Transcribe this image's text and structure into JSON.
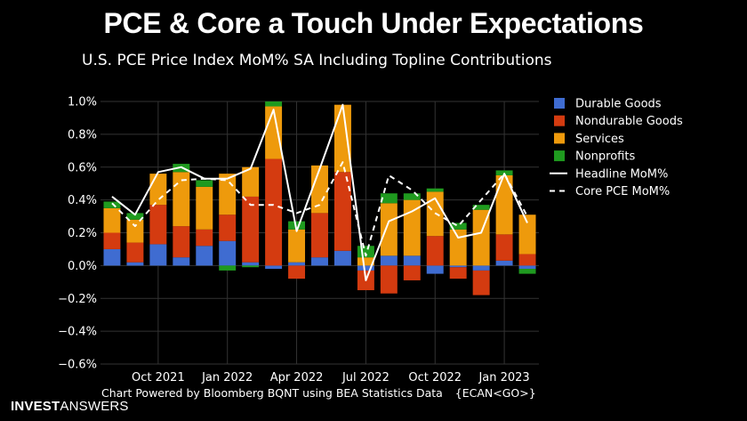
{
  "header": {
    "title": "PCE & Core a Touch Under Expectations",
    "subtitle": "U.S. PCE Price Index MoM% SA Including Topline Contributions"
  },
  "footer": {
    "credit": "Chart Powered by Bloomberg BQNT using BEA Statistics Data",
    "command": "{ECAN<GO>}",
    "brand_bold": "INVEST",
    "brand_light": "ANSWERS"
  },
  "colors": {
    "durable": "#3f6cd1",
    "nondurable": "#d43b10",
    "services": "#ee9a0c",
    "nonprofits": "#1f9a1f",
    "headline": "#ffffff",
    "core": "#ffffff",
    "grid": "#333333",
    "background": "#000000"
  },
  "chart_data": {
    "type": "bar",
    "stacked": true,
    "x": [
      "2021-08",
      "2021-09",
      "2021-10",
      "2021-11",
      "2021-12",
      "2022-01",
      "2022-02",
      "2022-03",
      "2022-04",
      "2022-05",
      "2022-06",
      "2022-07",
      "2022-08",
      "2022-09",
      "2022-10",
      "2022-11",
      "2022-12",
      "2023-01",
      "2023-02"
    ],
    "xtick_labels": [
      {
        "at": "2021-10",
        "label": "Oct 2021"
      },
      {
        "at": "2022-01",
        "label": "Jan 2022"
      },
      {
        "at": "2022-04",
        "label": "Apr 2022"
      },
      {
        "at": "2022-07",
        "label": "Jul 2022"
      },
      {
        "at": "2022-10",
        "label": "Oct 2022"
      },
      {
        "at": "2023-01",
        "label": "Jan 2023"
      }
    ],
    "ylim": [
      -0.6,
      1.0
    ],
    "yticks": [
      -0.6,
      -0.4,
      -0.2,
      0.0,
      0.2,
      0.4,
      0.6,
      0.8,
      1.0
    ],
    "ytick_labels": [
      "−0.6%",
      "−0.4%",
      "−0.2%",
      "0.0%",
      "0.2%",
      "0.4%",
      "0.6%",
      "0.8%",
      "1.0%"
    ],
    "series": [
      {
        "name": "Durable Goods",
        "kind": "bar",
        "color_key": "durable",
        "values": [
          0.1,
          0.02,
          0.13,
          0.05,
          0.12,
          0.15,
          0.02,
          -0.02,
          0.02,
          0.05,
          0.09,
          -0.03,
          0.06,
          0.06,
          -0.05,
          -0.01,
          -0.03,
          0.03,
          -0.02
        ]
      },
      {
        "name": "Nondurable Goods",
        "kind": "bar",
        "color_key": "nondurable",
        "values": [
          0.1,
          0.12,
          0.24,
          0.19,
          0.1,
          0.16,
          0.4,
          0.65,
          -0.08,
          0.27,
          0.48,
          -0.12,
          -0.17,
          -0.09,
          0.18,
          -0.07,
          -0.15,
          0.16,
          0.07
        ]
      },
      {
        "name": "Services",
        "kind": "bar",
        "color_key": "services",
        "values": [
          0.15,
          0.14,
          0.19,
          0.33,
          0.26,
          0.25,
          0.18,
          0.32,
          0.2,
          0.29,
          0.41,
          0.05,
          0.32,
          0.34,
          0.27,
          0.22,
          0.34,
          0.36,
          0.24
        ]
      },
      {
        "name": "Nonprofits",
        "kind": "bar",
        "color_key": "nonprofits",
        "values": [
          0.04,
          0.04,
          0.0,
          0.05,
          0.04,
          -0.03,
          -0.01,
          0.03,
          0.05,
          0.0,
          0.0,
          0.07,
          0.06,
          0.04,
          0.02,
          0.04,
          0.03,
          0.03,
          -0.03
        ]
      },
      {
        "name": "Headline MoM%",
        "kind": "line",
        "dash": false,
        "color_key": "headline",
        "values": [
          0.42,
          0.31,
          0.57,
          0.6,
          0.53,
          0.53,
          0.59,
          0.95,
          0.21,
          0.59,
          0.98,
          -0.09,
          0.27,
          0.33,
          0.41,
          0.17,
          0.2,
          0.56,
          0.26
        ]
      },
      {
        "name": "Core PCE MoM%",
        "kind": "line",
        "dash": true,
        "color_key": "core",
        "values": [
          0.38,
          0.24,
          0.4,
          0.52,
          0.53,
          0.52,
          0.37,
          0.37,
          0.32,
          0.37,
          0.63,
          0.06,
          0.55,
          0.46,
          0.32,
          0.24,
          0.4,
          0.56,
          0.3
        ]
      }
    ],
    "legend": {
      "placement": "right"
    },
    "grid": true
  }
}
